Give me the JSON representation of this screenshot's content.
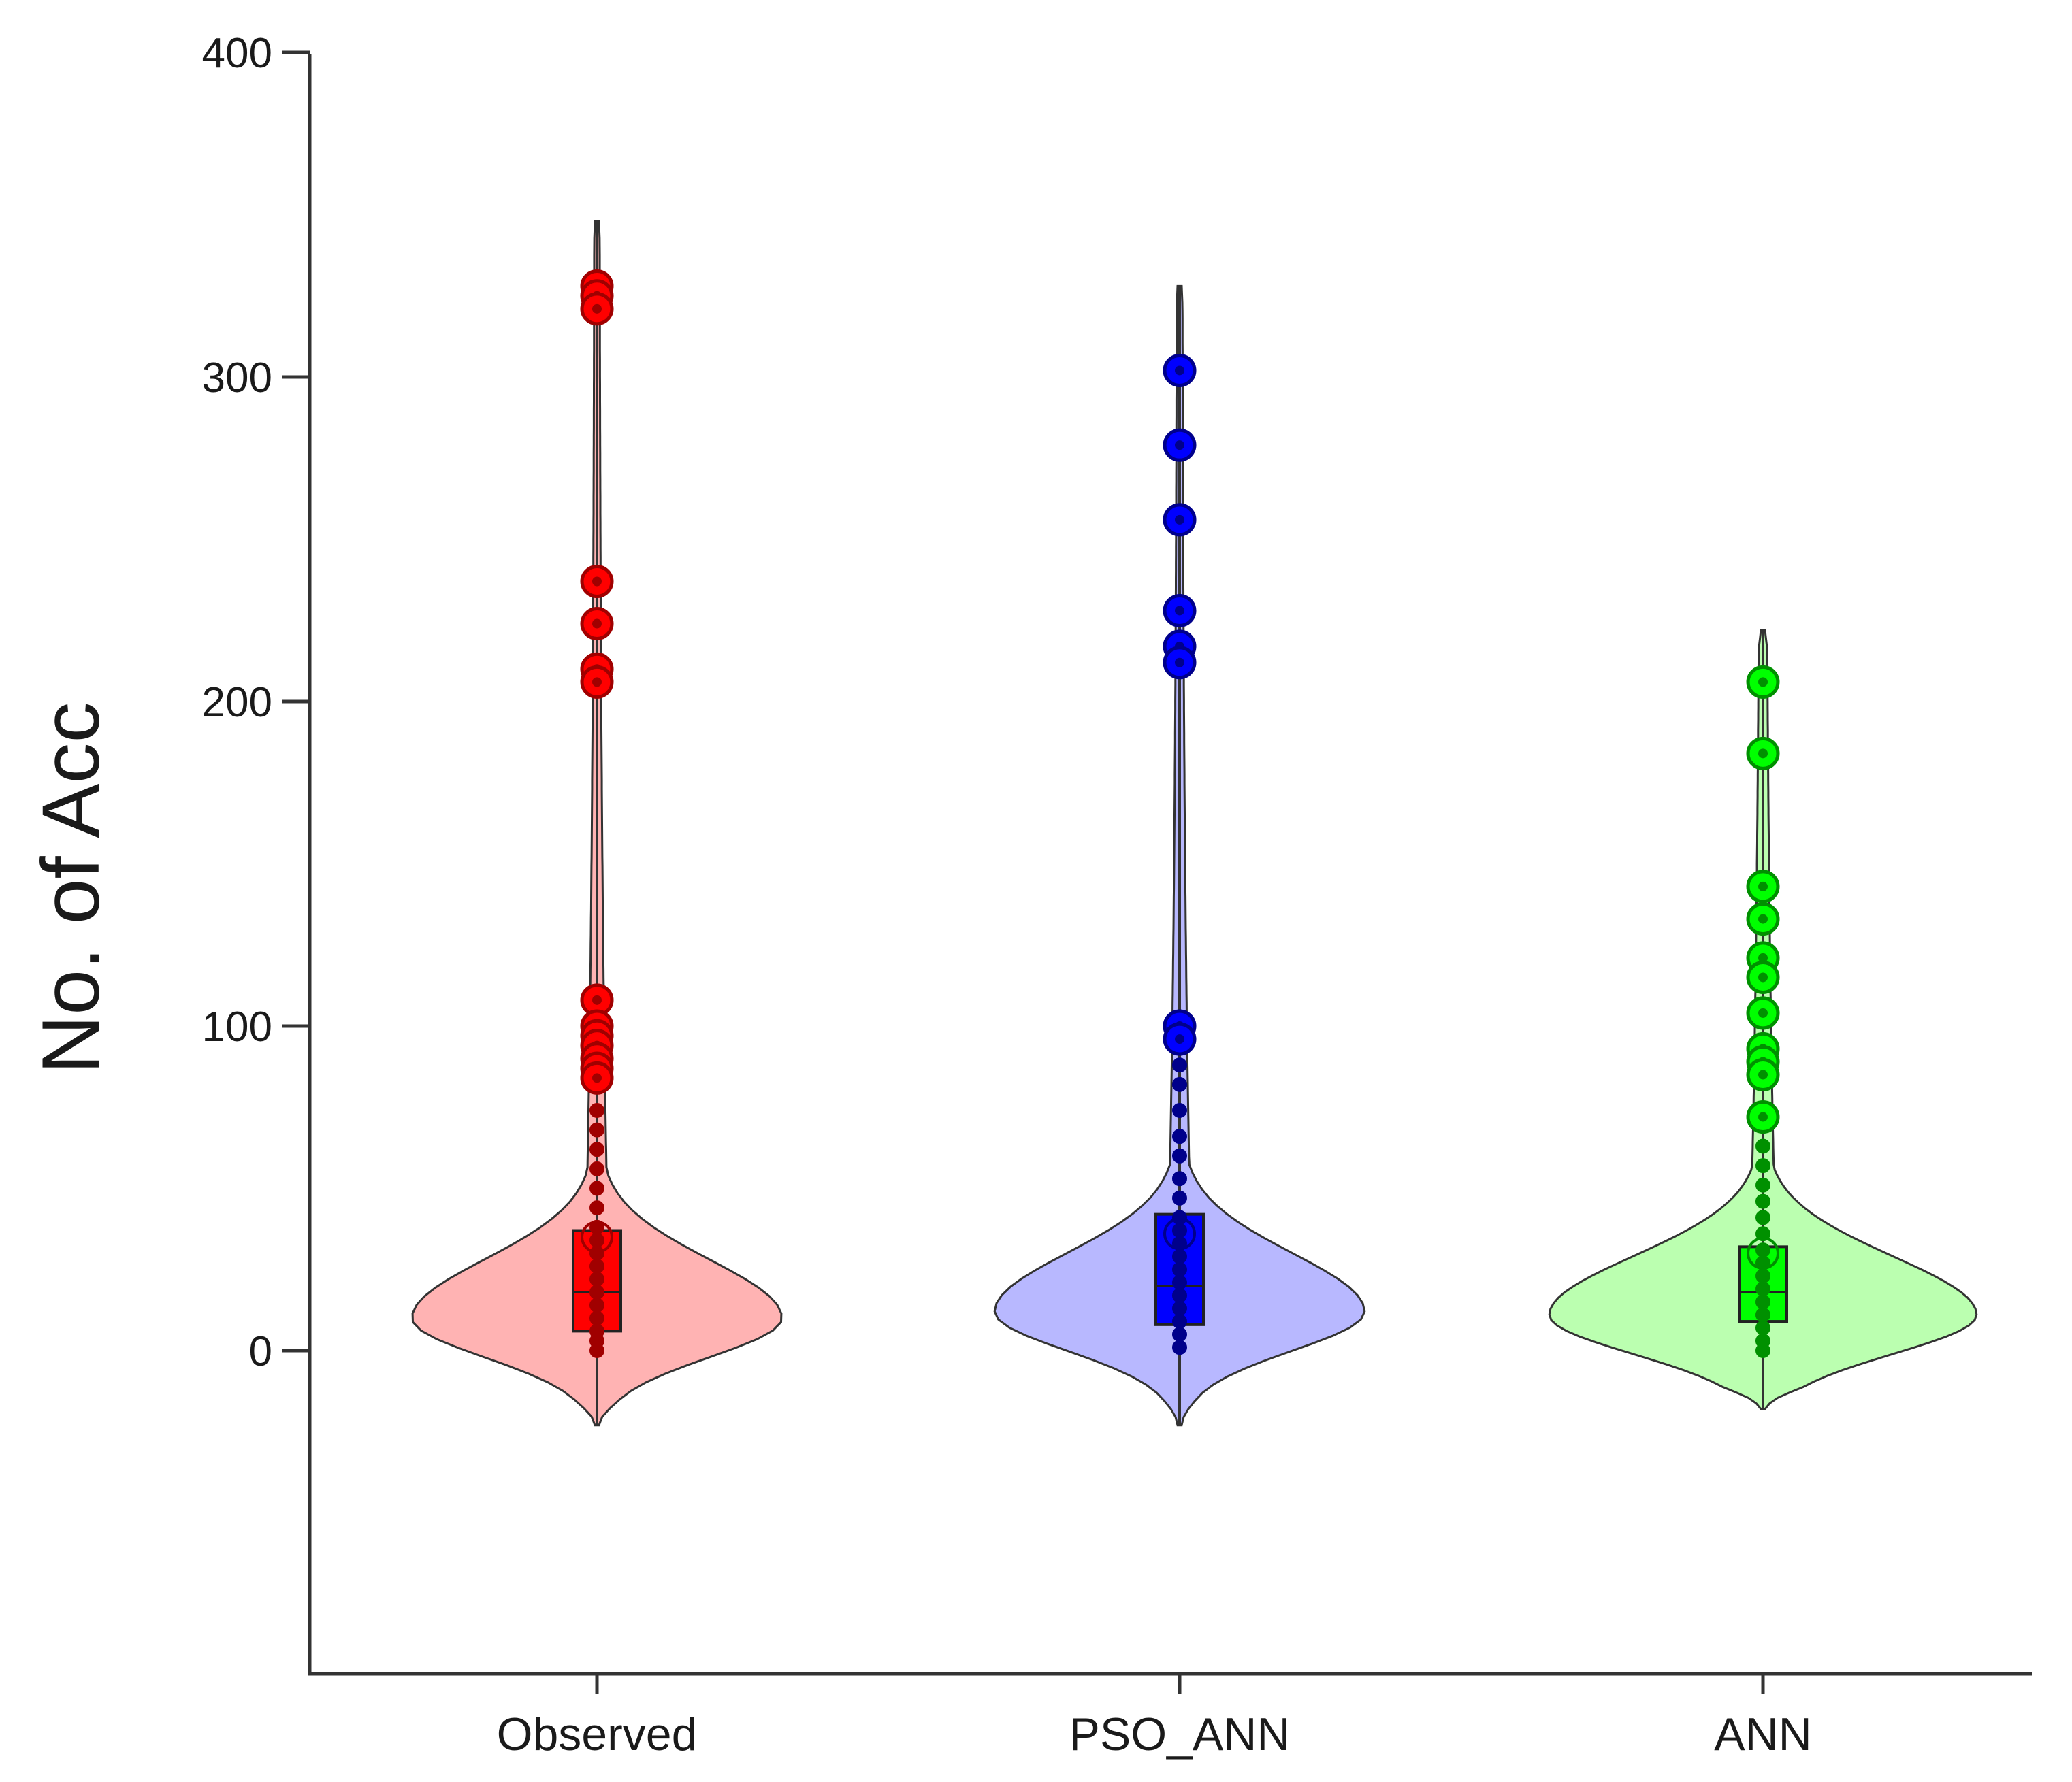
{
  "chart_data": {
    "type": "violin",
    "title": "",
    "xlabel": "",
    "ylabel": "No. of Acc",
    "ylim": [
      -100,
      400
    ],
    "yticks": [
      0,
      100,
      200,
      300,
      400
    ],
    "yticks_text": [
      "0",
      "100",
      "200",
      "300",
      "400"
    ],
    "grid": false,
    "categories": [
      "Observed",
      "PSO_ANN",
      "ANN"
    ],
    "series": [
      {
        "name": "Observed",
        "fill": "#ffb3b3",
        "point": "#ff0000",
        "point_dark": "#a00000",
        "violin_range": [
          -23,
          348
        ],
        "violin_peak_y": 10,
        "violin_half_width": 64,
        "box": {
          "q1": 6,
          "median": 18,
          "q3": 37,
          "mean": 35
        },
        "outliers": [
          328,
          325,
          321,
          237,
          224,
          210,
          206,
          108,
          100,
          97,
          94,
          90,
          87,
          84
        ],
        "points": [
          0,
          3,
          6,
          10,
          14,
          18,
          22,
          26,
          30,
          34,
          38,
          44,
          50,
          56,
          62,
          68,
          74
        ]
      },
      {
        "name": "PSO_ANN",
        "fill": "#b8b8ff",
        "point": "#0000ff",
        "point_dark": "#00008b",
        "violin_range": [
          -23,
          328
        ],
        "violin_peak_y": 12,
        "violin_half_width": 64,
        "box": {
          "q1": 8,
          "median": 20,
          "q3": 42,
          "mean": 36
        },
        "outliers": [
          302,
          279,
          256,
          228,
          217,
          212,
          100,
          96
        ],
        "points": [
          1,
          5,
          9,
          13,
          17,
          21,
          25,
          29,
          33,
          37,
          41,
          47,
          53,
          60,
          66,
          74,
          82,
          88
        ]
      },
      {
        "name": "ANN",
        "fill": "#bbffb0",
        "point": "#00ff00",
        "point_dark": "#009000",
        "violin_range": [
          -18,
          222
        ],
        "violin_peak_y": 11,
        "violin_half_width": 74,
        "box": {
          "q1": 9,
          "median": 18,
          "q3": 32,
          "mean": 30
        },
        "outliers": [
          206,
          184,
          143,
          133,
          121,
          115,
          104,
          93,
          89,
          85,
          72
        ],
        "points": [
          0,
          3,
          7,
          11,
          15,
          19,
          23,
          27,
          31,
          36,
          41,
          46,
          51,
          57,
          63
        ]
      }
    ]
  }
}
